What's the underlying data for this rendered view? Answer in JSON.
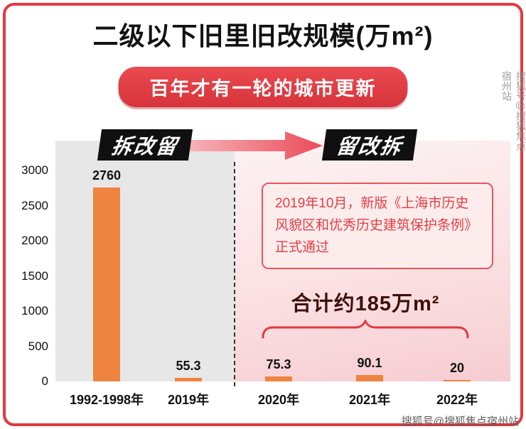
{
  "title": "二级以下旧里旧改规模(万m²)",
  "banner": "百年才有一轮的城市更新",
  "phase_labels": {
    "left": "拆改留",
    "right": "留改拆"
  },
  "annotation": "2019年10月，新版《上海市历史风貌区和优秀历史建筑保护条例》正式通过",
  "total_label": "合计约185万m²",
  "watermark": "搜狐号@搜狐焦点宿州站",
  "colors": {
    "accent_red": "#e0393f",
    "banner_red": "#d7333b",
    "bar_orange": "#ef8440",
    "annotation_red": "#e23f45",
    "phase_box_black": "#101010"
  },
  "chart_data": {
    "type": "bar",
    "title": "二级以下旧里旧改规模(万m²)",
    "categories": [
      "1992-1998年",
      "2019年",
      "2020年",
      "2021年",
      "2022年"
    ],
    "values": [
      2760,
      55.3,
      75.3,
      90.1,
      20
    ],
    "xlabel": "",
    "ylabel": "",
    "ylim": [
      0,
      3000
    ],
    "yticks": [
      0,
      500,
      1000,
      1500,
      2000,
      2500,
      3000
    ],
    "grid": false,
    "legend": false,
    "bar_color": "#ef8440",
    "background_groups": {
      "gray_left": [
        "1992-1998年",
        "2019年"
      ],
      "pink_right": [
        "2020年",
        "2021年",
        "2022年"
      ]
    }
  }
}
